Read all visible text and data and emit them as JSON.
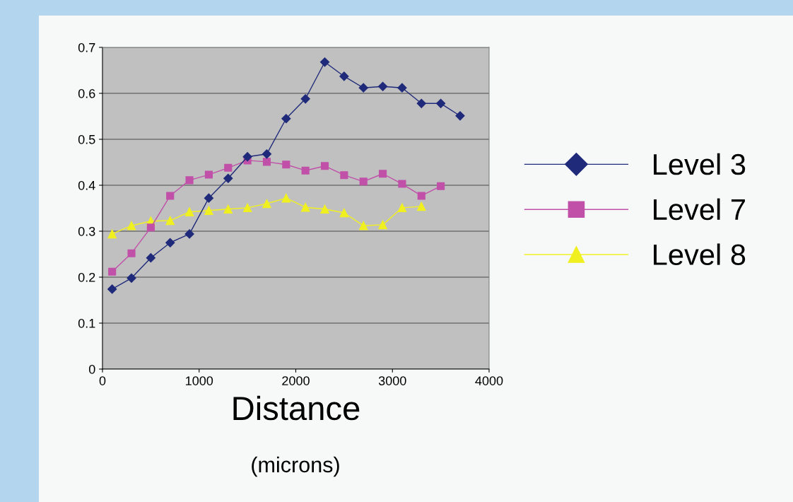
{
  "chart_data": {
    "type": "line",
    "xlabel": "Distance",
    "annotations": [
      "(microns)"
    ],
    "xlim": [
      0,
      4000
    ],
    "xticks": [
      0,
      1000,
      2000,
      3000,
      4000
    ],
    "ylim": [
      0,
      0.7
    ],
    "yticks": [
      0,
      0.1,
      0.2,
      0.3,
      0.4,
      0.5,
      0.6,
      0.7
    ],
    "grid": "y",
    "legend": "right",
    "line_style": "solid",
    "series": [
      {
        "name": "Level 3",
        "color": "#1f2a7a",
        "marker": "diamond",
        "x": [
          100,
          300,
          500,
          700,
          900,
          1100,
          1300,
          1500,
          1700,
          1900,
          2100,
          2300,
          2500,
          2700,
          2900,
          3100,
          3300,
          3500,
          3700
        ],
        "values": [
          0.174,
          0.198,
          0.242,
          0.275,
          0.294,
          0.372,
          0.415,
          0.462,
          0.468,
          0.545,
          0.588,
          0.668,
          0.637,
          0.612,
          0.615,
          0.612,
          0.578,
          0.578,
          0.551
        ]
      },
      {
        "name": "Level 7",
        "color": "#c050a8",
        "marker": "square",
        "x": [
          100,
          300,
          500,
          700,
          900,
          1100,
          1300,
          1500,
          1700,
          1900,
          2100,
          2300,
          2500,
          2700,
          2900,
          3100,
          3300,
          3500
        ],
        "values": [
          0.212,
          0.252,
          0.308,
          0.377,
          0.411,
          0.423,
          0.438,
          0.454,
          0.451,
          0.445,
          0.432,
          0.442,
          0.422,
          0.408,
          0.425,
          0.403,
          0.377,
          0.398
        ]
      },
      {
        "name": "Level 8",
        "color": "#f0f020",
        "marker": "triangle",
        "x": [
          100,
          300,
          500,
          700,
          900,
          1100,
          1300,
          1500,
          1700,
          1900,
          2100,
          2300,
          2500,
          2700,
          2900,
          3100,
          3300
        ],
        "values": [
          0.294,
          0.312,
          0.322,
          0.323,
          0.342,
          0.345,
          0.348,
          0.351,
          0.36,
          0.372,
          0.352,
          0.348,
          0.34,
          0.312,
          0.314,
          0.351,
          0.354
        ]
      }
    ]
  }
}
